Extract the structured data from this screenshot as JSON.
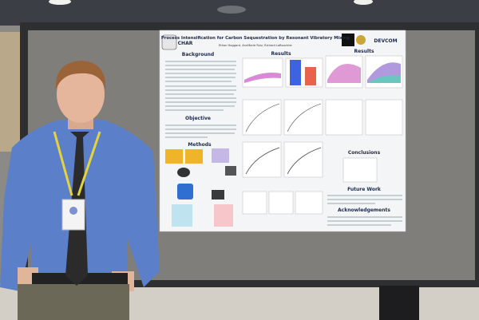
{
  "poster": {
    "title": "Process Intensification for Carbon Sequestration by Resonant Vibratory Mixing",
    "authors": "Ethan Haggard, AnnMarie Ruiz, Richard LaBouchier",
    "logos": [
      "CHAR",
      "DEVCOM"
    ],
    "sections": {
      "background": "Background",
      "objective": "Objective",
      "methods": "Methods",
      "results_left": "Results",
      "results_right": "Results",
      "conclusions": "Conclusions",
      "future_work": "Future Work",
      "acknowledgements": "Acknowledgements"
    }
  }
}
